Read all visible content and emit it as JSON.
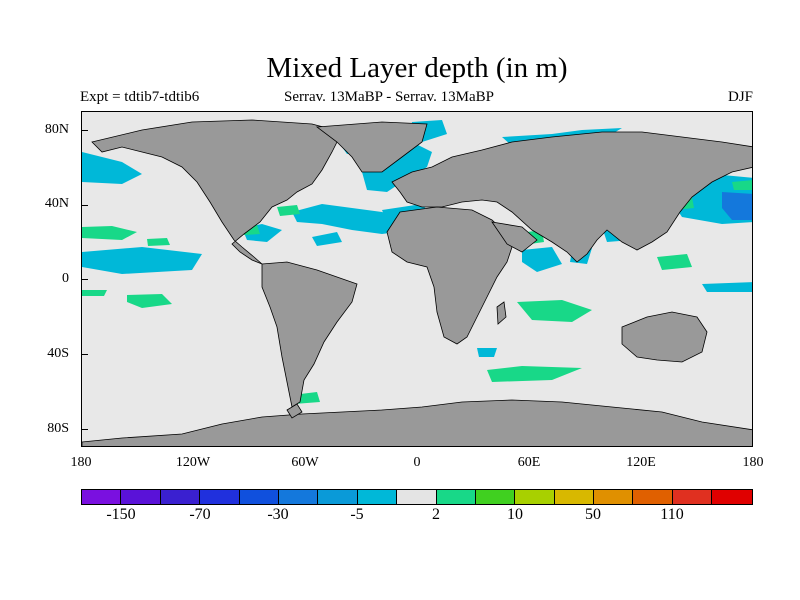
{
  "title": "Mixed Layer depth (in m)",
  "subtitle_left": "Expt = tdtib7-tdtib6",
  "subtitle_center": "Serrav.   13MaBP - Serrav.   13MaBP",
  "subtitle_right": "DJF",
  "lat_labels": [
    "80N",
    "40N",
    "0",
    "40S",
    "80S"
  ],
  "lon_labels": [
    "180",
    "120W",
    "60W",
    "0",
    "60E",
    "120E",
    "180"
  ],
  "colorbar": {
    "colors": [
      "#7a10e0",
      "#5a12d8",
      "#3a20d0",
      "#2030dd",
      "#1050dd",
      "#1478dc",
      "#0a9ad8",
      "#00b8d8",
      "#e4e4e4",
      "#18d888",
      "#40d020",
      "#a8d000",
      "#d8b800",
      "#e09000",
      "#e06000",
      "#e03020",
      "#e00000"
    ],
    "labels": [
      "-150",
      "-70",
      "-30",
      "-5",
      "2",
      "10",
      "50",
      "110"
    ]
  },
  "colors": {
    "ocean": "#e8e8e8",
    "land": "#999999",
    "coast": "#000000"
  }
}
